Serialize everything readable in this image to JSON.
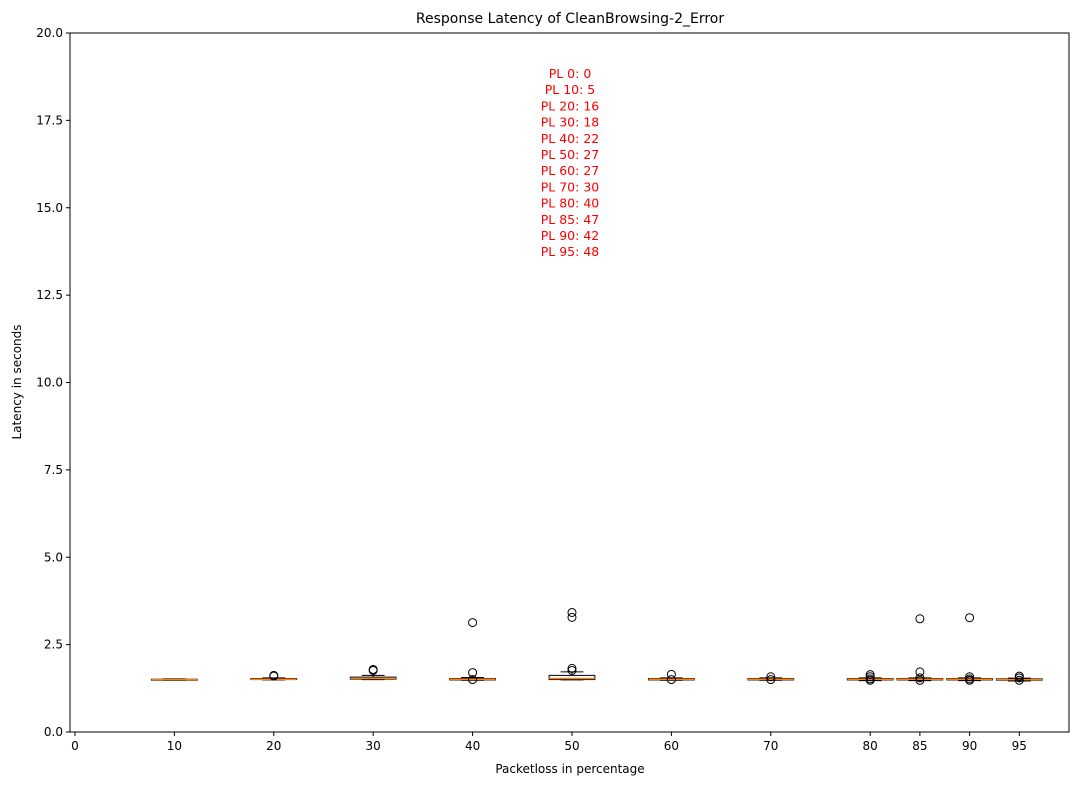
{
  "chart_data": {
    "type": "box",
    "title": "Response Latency of CleanBrowsing-2_Error",
    "xlabel": "Packetloss in percentage",
    "ylabel": "Latency in seconds",
    "xlim": [
      -0.5,
      100
    ],
    "ylim": [
      0,
      20
    ],
    "x_ticks": [
      0,
      10,
      20,
      30,
      40,
      50,
      60,
      70,
      80,
      85,
      90,
      95
    ],
    "y_ticks": [
      "0.0",
      "2.5",
      "5.0",
      "7.5",
      "10.0",
      "12.5",
      "15.0",
      "17.5",
      "20.0"
    ],
    "median_color": "#ff7f0e",
    "box_color": "#000000",
    "boxes": [
      {
        "x": 10,
        "q1": 1.49,
        "median": 1.5,
        "q3": 1.51,
        "whisker_low": 1.48,
        "whisker_high": 1.52,
        "outliers": []
      },
      {
        "x": 20,
        "q1": 1.5,
        "median": 1.51,
        "q3": 1.53,
        "whisker_low": 1.49,
        "whisker_high": 1.55,
        "outliers": [
          1.6,
          1.62
        ]
      },
      {
        "x": 30,
        "q1": 1.51,
        "median": 1.53,
        "q3": 1.57,
        "whisker_low": 1.5,
        "whisker_high": 1.62,
        "outliers": [
          1.76,
          1.79
        ]
      },
      {
        "x": 40,
        "q1": 1.49,
        "median": 1.51,
        "q3": 1.53,
        "whisker_low": 1.48,
        "whisker_high": 1.56,
        "outliers": [
          1.5,
          1.7,
          3.13
        ]
      },
      {
        "x": 50,
        "q1": 1.5,
        "median": 1.53,
        "q3": 1.62,
        "whisker_low": 1.49,
        "whisker_high": 1.72,
        "outliers": [
          1.76,
          1.82,
          3.28,
          3.42
        ]
      },
      {
        "x": 60,
        "q1": 1.49,
        "median": 1.51,
        "q3": 1.53,
        "whisker_low": 1.48,
        "whisker_high": 1.55,
        "outliers": [
          1.5,
          1.65
        ]
      },
      {
        "x": 70,
        "q1": 1.49,
        "median": 1.51,
        "q3": 1.53,
        "whisker_low": 1.48,
        "whisker_high": 1.55,
        "outliers": [
          1.5,
          1.58
        ]
      },
      {
        "x": 80,
        "q1": 1.49,
        "median": 1.51,
        "q3": 1.53,
        "whisker_low": 1.47,
        "whisker_high": 1.55,
        "outliers": [
          1.48,
          1.52,
          1.58,
          1.64
        ]
      },
      {
        "x": 85,
        "q1": 1.49,
        "median": 1.51,
        "q3": 1.53,
        "whisker_low": 1.47,
        "whisker_high": 1.55,
        "outliers": [
          1.48,
          1.55,
          1.72,
          3.24
        ]
      },
      {
        "x": 90,
        "q1": 1.49,
        "median": 1.51,
        "q3": 1.53,
        "whisker_low": 1.47,
        "whisker_high": 1.55,
        "outliers": [
          1.48,
          1.52,
          1.58,
          3.27
        ]
      },
      {
        "x": 95,
        "q1": 1.48,
        "median": 1.5,
        "q3": 1.52,
        "whisker_low": 1.46,
        "whisker_high": 1.54,
        "outliers": [
          1.48,
          1.55,
          1.6
        ]
      }
    ],
    "annotation": {
      "color": "#ff0000",
      "lines": [
        "PL 0: 0",
        "PL 10: 5",
        "PL 20: 16",
        "PL 30: 18",
        "PL 40: 22",
        "PL 50: 27",
        "PL 60: 27",
        "PL 70: 30",
        "PL 80: 40",
        "PL 85: 47",
        "PL 90: 42",
        "PL 95: 48"
      ]
    }
  }
}
